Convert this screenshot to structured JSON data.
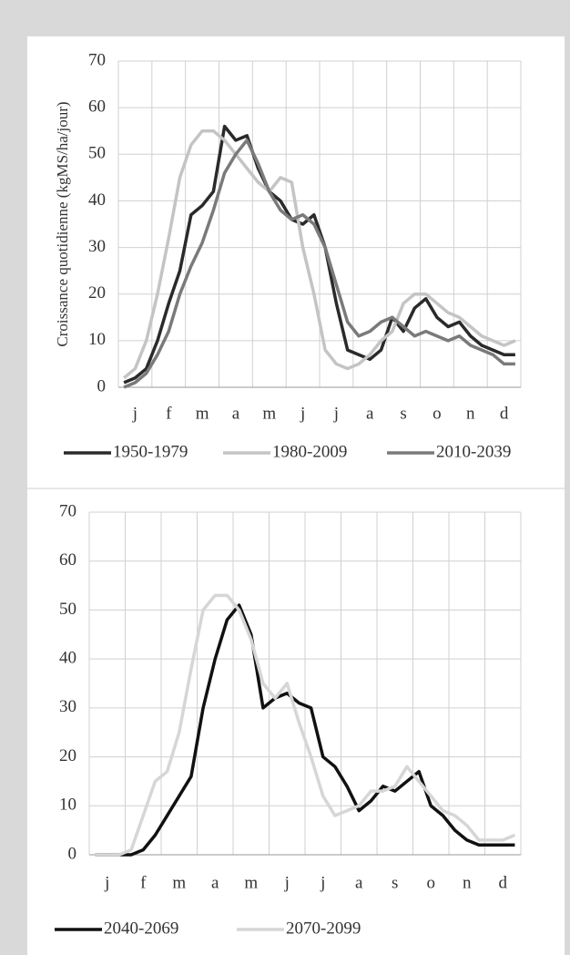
{
  "chart_data": [
    {
      "type": "line",
      "y_label": "Croissance quotidienne (kgMS/ha/jour)",
      "categories": [
        null,
        "j",
        null,
        null,
        "f",
        null,
        null,
        "m",
        null,
        null,
        "a",
        null,
        null,
        "m",
        null,
        null,
        "j",
        null,
        null,
        "j",
        null,
        null,
        "a",
        null,
        null,
        "s",
        null,
        null,
        "o",
        null,
        null,
        "n",
        null,
        null,
        "d",
        null
      ],
      "ylim": [
        0,
        70
      ],
      "yticks": [
        0,
        10,
        20,
        30,
        40,
        50,
        60,
        70
      ],
      "grid": true,
      "series": [
        {
          "name": "1950-1979",
          "color": "#2a2a2a",
          "values": [
            1,
            2,
            4,
            10,
            18,
            25,
            37,
            39,
            42,
            56,
            53,
            54,
            47,
            42,
            40,
            36,
            35,
            37,
            30,
            18,
            8,
            7,
            6,
            8,
            15,
            12,
            17,
            19,
            15,
            13,
            14,
            11,
            9,
            8,
            7,
            7
          ]
        },
        {
          "name": "1980-2009",
          "color": "#c4c4c4",
          "values": [
            2,
            4,
            10,
            20,
            32,
            45,
            52,
            55,
            55,
            53,
            50,
            47,
            44,
            42,
            45,
            44,
            30,
            20,
            8,
            5,
            4,
            5,
            7,
            10,
            12,
            18,
            20,
            20,
            18,
            16,
            15,
            13,
            11,
            10,
            9,
            10
          ]
        },
        {
          "name": "2010-2039",
          "color": "#7a7a7a",
          "values": [
            0,
            1,
            3,
            7,
            12,
            20,
            26,
            31,
            38,
            46,
            50,
            53,
            48,
            42,
            38,
            36,
            37,
            35,
            30,
            22,
            14,
            11,
            12,
            14,
            15,
            13,
            11,
            12,
            11,
            10,
            11,
            9,
            8,
            7,
            5,
            5
          ]
        }
      ]
    },
    {
      "type": "line",
      "categories": [
        null,
        "j",
        null,
        null,
        "f",
        null,
        null,
        "m",
        null,
        null,
        "a",
        null,
        null,
        "m",
        null,
        null,
        "j",
        null,
        null,
        "j",
        null,
        null,
        "a",
        null,
        null,
        "s",
        null,
        null,
        "o",
        null,
        null,
        "n",
        null,
        null,
        "d",
        null
      ],
      "ylim": [
        0,
        70
      ],
      "yticks": [
        0,
        10,
        20,
        30,
        40,
        50,
        60,
        70
      ],
      "grid": true,
      "series": [
        {
          "name": "2040-2069",
          "color": "#111111",
          "values": [
            0,
            0,
            0,
            0,
            1,
            4,
            8,
            12,
            16,
            30,
            40,
            48,
            51,
            45,
            30,
            32,
            33,
            31,
            30,
            20,
            18,
            14,
            9,
            11,
            14,
            13,
            15,
            17,
            10,
            8,
            5,
            3,
            2,
            2,
            2,
            2
          ]
        },
        {
          "name": "2070-2099",
          "color": "#d6d6d6",
          "values": [
            0,
            0,
            0,
            1,
            8,
            15,
            17,
            25,
            38,
            50,
            53,
            53,
            50,
            44,
            35,
            32,
            35,
            27,
            20,
            12,
            8,
            9,
            10,
            13,
            13,
            14,
            18,
            15,
            12,
            9,
            8,
            6,
            3,
            3,
            3,
            4
          ]
        }
      ]
    }
  ]
}
